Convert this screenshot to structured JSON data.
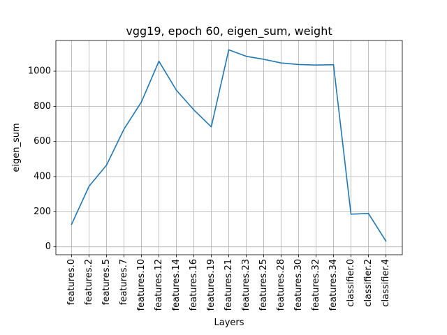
{
  "chart_data": {
    "type": "line",
    "title": "vgg19, epoch 60, eigen_sum, weight",
    "xlabel": "Layers",
    "ylabel": "eigen_sum",
    "categories": [
      "features.0",
      "features.2",
      "features.5",
      "features.7",
      "features.10",
      "features.12",
      "features.14",
      "features.16",
      "features.19",
      "features.21",
      "features.23",
      "features.25",
      "features.28",
      "features.30",
      "features.32",
      "features.34",
      "classifier.0",
      "classifier.2",
      "classifier.4"
    ],
    "series": [
      {
        "values": [
          128,
          345,
          465,
          670,
          825,
          1057,
          892,
          780,
          683,
          1122,
          1085,
          1068,
          1047,
          1038,
          1035,
          1037,
          186,
          190,
          33
        ]
      }
    ],
    "ylim": [
      -45,
      1175
    ],
    "yticks": [
      0,
      200,
      400,
      600,
      800,
      1000
    ],
    "grid": true,
    "colors": {
      "line": "#1f77b4",
      "grid": "#b0b0b0"
    }
  }
}
